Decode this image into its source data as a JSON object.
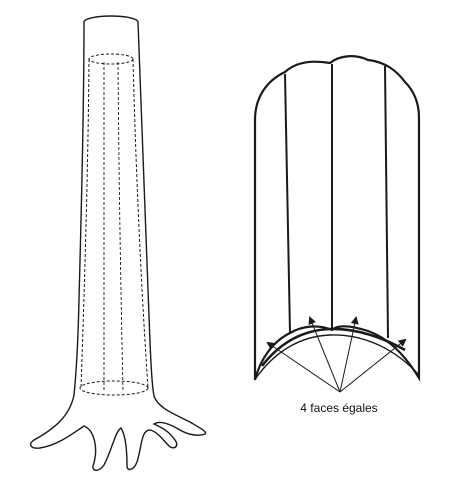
{
  "figure": {
    "caption": "4 faces égales",
    "stroke_color": "#1a1a1a",
    "background": "#ffffff",
    "face_count": 4
  }
}
